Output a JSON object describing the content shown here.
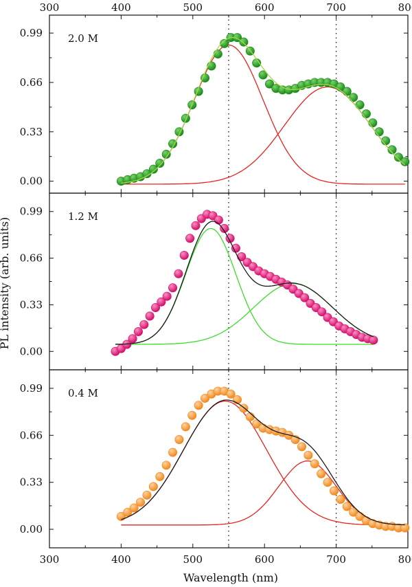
{
  "chart_data": {
    "type": "scatter",
    "xlabel": "Wavelength (nm)",
    "ylabel": "PL intensity (arb. units)",
    "xlim": [
      300,
      800
    ],
    "x_ticks": [
      "300",
      "400",
      "500",
      "600",
      "700",
      "800"
    ],
    "y_ticks": [
      "0.00",
      "0.33",
      "0.66",
      "0.99"
    ],
    "reference_lines_x": [
      550,
      700
    ],
    "reference_line_style": "dotted",
    "panels": [
      {
        "label": "2.0 M",
        "ylim": [
          -0.08,
          1.11
        ],
        "marker_color": "#1a8a1a",
        "marker_highlight": "#7ad46a",
        "component_color": "#e8231e",
        "fit_color": "#a8d84a",
        "x": [
          400,
          409,
          418,
          427,
          436,
          445,
          454,
          463,
          472,
          481,
          490,
          499,
          508,
          517,
          526,
          535,
          544,
          553,
          562,
          571,
          580,
          589,
          598,
          607,
          616,
          625,
          634,
          643,
          652,
          661,
          670,
          679,
          688,
          697,
          706,
          715,
          724,
          733,
          742,
          751,
          760,
          769,
          778,
          787,
          796
        ],
        "y": [
          0.0,
          0.01,
          0.02,
          0.03,
          0.05,
          0.08,
          0.12,
          0.18,
          0.25,
          0.33,
          0.42,
          0.51,
          0.6,
          0.69,
          0.77,
          0.85,
          0.92,
          0.96,
          0.96,
          0.93,
          0.87,
          0.79,
          0.71,
          0.65,
          0.62,
          0.61,
          0.61,
          0.62,
          0.64,
          0.65,
          0.66,
          0.66,
          0.66,
          0.65,
          0.63,
          0.6,
          0.56,
          0.51,
          0.45,
          0.39,
          0.33,
          0.27,
          0.21,
          0.16,
          0.13
        ],
        "components": [
          {
            "center": 550,
            "sigma": 48,
            "amplitude": 0.93
          },
          {
            "center": 688,
            "sigma": 60,
            "amplitude": 0.65
          }
        ],
        "baseline": -0.02
      },
      {
        "label": "1.2 M",
        "ylim": [
          -0.13,
          1.12
        ],
        "marker_color": "#d0106a",
        "marker_highlight": "#ff8ec4",
        "component_color": "#3ddc2a",
        "fit_color": "#1a1a1a",
        "x": [
          392,
          400,
          408,
          416,
          424,
          432,
          440,
          448,
          456,
          464,
          472,
          480,
          488,
          496,
          504,
          512,
          520,
          528,
          536,
          544,
          552,
          560,
          568,
          576,
          584,
          592,
          600,
          608,
          616,
          624,
          632,
          640,
          648,
          656,
          664,
          672,
          680,
          688,
          696,
          704,
          712,
          720,
          728,
          736,
          744,
          752
        ],
        "y": [
          0.0,
          0.02,
          0.05,
          0.09,
          0.14,
          0.19,
          0.25,
          0.31,
          0.35,
          0.39,
          0.45,
          0.55,
          0.68,
          0.8,
          0.89,
          0.94,
          0.97,
          0.96,
          0.93,
          0.87,
          0.8,
          0.73,
          0.67,
          0.63,
          0.6,
          0.57,
          0.55,
          0.53,
          0.51,
          0.49,
          0.47,
          0.44,
          0.41,
          0.38,
          0.34,
          0.31,
          0.28,
          0.24,
          0.21,
          0.18,
          0.16,
          0.14,
          0.12,
          0.1,
          0.09,
          0.08
        ],
        "components": [
          {
            "center": 525,
            "sigma": 35,
            "amplitude": 0.82
          },
          {
            "center": 640,
            "sigma": 55,
            "amplitude": 0.43
          }
        ],
        "baseline": 0.05
      },
      {
        "label": "0.4 M",
        "ylim": [
          -0.13,
          1.12
        ],
        "marker_color": "#f08a1e",
        "marker_highlight": "#ffd2a0",
        "component_color": "#e8231e",
        "fit_color": "#1a1a1a",
        "x": [
          400,
          409,
          418,
          427,
          436,
          445,
          454,
          463,
          472,
          481,
          490,
          499,
          508,
          517,
          526,
          535,
          544,
          553,
          562,
          571,
          580,
          589,
          598,
          607,
          616,
          625,
          634,
          643,
          652,
          661,
          670,
          679,
          688,
          697,
          706,
          715,
          724,
          733,
          742,
          751,
          760,
          769,
          778,
          787,
          796
        ],
        "y": [
          0.09,
          0.12,
          0.15,
          0.19,
          0.24,
          0.3,
          0.37,
          0.45,
          0.54,
          0.63,
          0.72,
          0.8,
          0.87,
          0.92,
          0.95,
          0.97,
          0.97,
          0.95,
          0.91,
          0.85,
          0.79,
          0.74,
          0.71,
          0.7,
          0.69,
          0.68,
          0.66,
          0.63,
          0.58,
          0.52,
          0.46,
          0.39,
          0.33,
          0.27,
          0.21,
          0.16,
          0.12,
          0.09,
          0.06,
          0.04,
          0.03,
          0.02,
          0.02,
          0.01,
          0.01
        ],
        "components": [
          {
            "center": 545,
            "sigma": 58,
            "amplitude": 0.87
          },
          {
            "center": 660,
            "sigma": 40,
            "amplitude": 0.45
          }
        ],
        "baseline": 0.03
      }
    ]
  }
}
